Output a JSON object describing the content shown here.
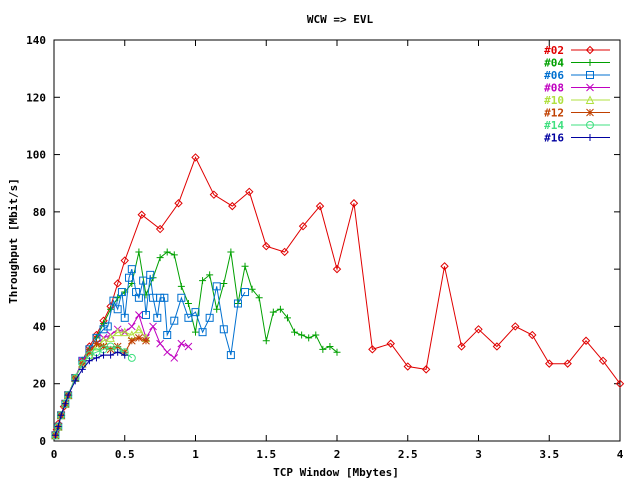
{
  "chart_data": {
    "type": "line",
    "title": "WCW => EVL",
    "xlabel": "TCP Window [Mbytes]",
    "ylabel": "Throughput [Mbit/s]",
    "xlim": [
      0,
      4
    ],
    "ylim": [
      0,
      140
    ],
    "xticks": [
      "0",
      "0.5",
      "1",
      "1.5",
      "2",
      "2.5",
      "3",
      "3.5",
      "4"
    ],
    "yticks": [
      "0",
      "20",
      "40",
      "60",
      "80",
      "100",
      "120",
      "140"
    ],
    "grid": false,
    "legend_position": "top-right",
    "series": [
      {
        "name": "#02",
        "color": "#e00000",
        "marker": "diamond",
        "x": [
          0.01,
          0.02,
          0.03,
          0.05,
          0.07,
          0.1,
          0.15,
          0.2,
          0.25,
          0.3,
          0.35,
          0.4,
          0.45,
          0.5,
          0.62,
          0.75,
          0.88,
          1.0,
          1.13,
          1.26,
          1.38,
          1.5,
          1.63,
          1.76,
          1.88,
          2.0,
          2.12,
          2.25,
          2.38,
          2.5,
          2.63,
          2.76,
          2.88,
          3.0,
          3.13,
          3.26,
          3.38,
          3.5,
          3.63,
          3.76,
          3.88,
          4.0
        ],
        "y": [
          2,
          4,
          6,
          9,
          12,
          16,
          22,
          28,
          33,
          37,
          42,
          47,
          55,
          63,
          79,
          74,
          83,
          99,
          86,
          82,
          87,
          68,
          66,
          75,
          82,
          60,
          83,
          32,
          34,
          26,
          25,
          61,
          33,
          39,
          33,
          40,
          37,
          27,
          27,
          35,
          28,
          20
        ]
      },
      {
        "name": "#04",
        "color": "#00a000",
        "marker": "plus",
        "x": [
          0.01,
          0.03,
          0.05,
          0.08,
          0.1,
          0.15,
          0.2,
          0.25,
          0.3,
          0.35,
          0.4,
          0.45,
          0.5,
          0.55,
          0.6,
          0.65,
          0.7,
          0.75,
          0.8,
          0.85,
          0.9,
          0.95,
          1.0,
          1.05,
          1.1,
          1.15,
          1.2,
          1.25,
          1.3,
          1.35,
          1.4,
          1.45,
          1.5,
          1.55,
          1.6,
          1.65,
          1.7,
          1.75,
          1.8,
          1.85,
          1.9,
          1.95,
          2.0
        ],
        "y": [
          2,
          5,
          9,
          13,
          16,
          22,
          28,
          32,
          36,
          41,
          46,
          50,
          52,
          55,
          66,
          51,
          57,
          64,
          66,
          65,
          54,
          48,
          38,
          56,
          58,
          46,
          55,
          66,
          48,
          61,
          53,
          50,
          35,
          45,
          46,
          43,
          38,
          37,
          36,
          37,
          32,
          33,
          31
        ]
      },
      {
        "name": "#06",
        "color": "#0070d0",
        "marker": "square",
        "x": [
          0.01,
          0.03,
          0.05,
          0.08,
          0.1,
          0.15,
          0.2,
          0.25,
          0.3,
          0.35,
          0.38,
          0.42,
          0.45,
          0.48,
          0.5,
          0.53,
          0.55,
          0.58,
          0.6,
          0.63,
          0.65,
          0.68,
          0.7,
          0.73,
          0.75,
          0.78,
          0.8,
          0.85,
          0.9,
          0.95,
          1.0,
          1.05,
          1.1,
          1.15,
          1.2,
          1.25,
          1.3,
          1.35
        ],
        "y": [
          2,
          5,
          9,
          13,
          16,
          22,
          28,
          32,
          36,
          39,
          40,
          49,
          46,
          52,
          43,
          57,
          60,
          52,
          50,
          56,
          44,
          58,
          50,
          43,
          50,
          50,
          37,
          42,
          50,
          43,
          45,
          38,
          43,
          54,
          39,
          30,
          48,
          52
        ]
      },
      {
        "name": "#08",
        "color": "#c000c0",
        "marker": "x",
        "x": [
          0.01,
          0.03,
          0.05,
          0.08,
          0.1,
          0.15,
          0.2,
          0.25,
          0.3,
          0.35,
          0.4,
          0.45,
          0.5,
          0.55,
          0.6,
          0.65,
          0.7,
          0.75,
          0.8,
          0.85,
          0.9,
          0.95
        ],
        "y": [
          2,
          5,
          9,
          13,
          16,
          22,
          28,
          31,
          34,
          36,
          37,
          39,
          38,
          40,
          44,
          36,
          40,
          34,
          31,
          29,
          34,
          33
        ]
      },
      {
        "name": "#10",
        "color": "#b0e040",
        "marker": "triangle",
        "x": [
          0.01,
          0.03,
          0.05,
          0.08,
          0.1,
          0.15,
          0.2,
          0.25,
          0.3,
          0.35,
          0.4,
          0.45,
          0.5,
          0.55,
          0.6,
          0.65
        ],
        "y": [
          2,
          5,
          9,
          13,
          16,
          22,
          27,
          30,
          33,
          35,
          36,
          38,
          38,
          37,
          39,
          36
        ]
      },
      {
        "name": "#12",
        "color": "#c04000",
        "marker": "star",
        "x": [
          0.01,
          0.03,
          0.05,
          0.08,
          0.1,
          0.15,
          0.2,
          0.25,
          0.3,
          0.35,
          0.4,
          0.45,
          0.5,
          0.55,
          0.6,
          0.65
        ],
        "y": [
          2,
          5,
          9,
          13,
          16,
          22,
          27,
          31,
          34,
          33,
          32,
          33,
          31,
          35,
          36,
          35
        ]
      },
      {
        "name": "#14",
        "color": "#40e080",
        "marker": "circle",
        "x": [
          0.01,
          0.03,
          0.05,
          0.08,
          0.1,
          0.15,
          0.2,
          0.25,
          0.3,
          0.35,
          0.4,
          0.45,
          0.5,
          0.55
        ],
        "y": [
          2,
          5,
          9,
          13,
          16,
          22,
          27,
          30,
          31,
          32,
          33,
          32,
          31,
          29
        ]
      },
      {
        "name": "#16",
        "color": "#0000a0",
        "marker": "plus",
        "x": [
          0.01,
          0.03,
          0.05,
          0.08,
          0.1,
          0.15,
          0.2,
          0.25,
          0.3,
          0.35,
          0.4,
          0.45,
          0.5
        ],
        "y": [
          2,
          5,
          9,
          13,
          16,
          21,
          25,
          28,
          29,
          30,
          30,
          31,
          30
        ]
      }
    ]
  }
}
